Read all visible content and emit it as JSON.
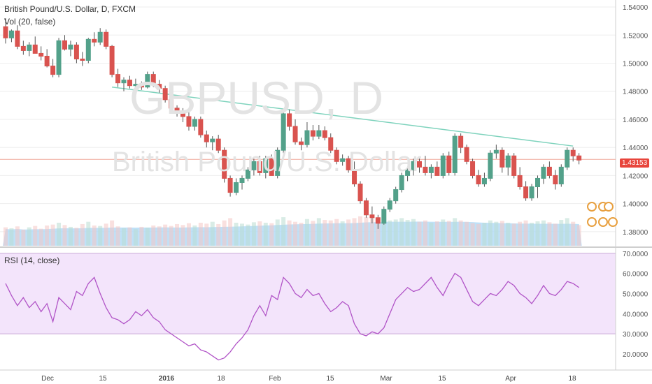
{
  "header": {
    "symbol_title": "British Pound/U.S. Dollar, D, FXCM",
    "volume_label": "Vol (20, false)",
    "rsi_label": "RSI (14, close)"
  },
  "watermark": {
    "line1": "GBPUSD, D",
    "line2": "British Pound/U.S. Dollar"
  },
  "last_price": "1.43153",
  "colors": {
    "up": "#53a18a",
    "down": "#d9534f",
    "trendline": "#7fd3bd",
    "price_line": "#f0a89a",
    "volume_ma": "#a9d7f5",
    "rsi_line": "#b154c7",
    "rsi_band": "#f3e4fb",
    "grid": "#eeeeee"
  },
  "chart_data": [
    {
      "type": "candlestick",
      "title": "British Pound/U.S. Dollar, D, FXCM",
      "ylim": [
        1.37,
        1.545
      ],
      "y_ticks": [
        "1.54000",
        "1.52000",
        "1.50000",
        "1.48000",
        "1.46000",
        "1.44000",
        "1.42000",
        "1.40000",
        "1.38000"
      ],
      "x_ticks": [
        "Dec",
        "15",
        "2016",
        "18",
        "Feb",
        "15",
        "Mar",
        "15",
        "Apr",
        "18"
      ],
      "ohlc": [
        [
          1.526,
          1.532,
          1.514,
          1.518
        ],
        [
          1.518,
          1.524,
          1.515,
          1.523
        ],
        [
          1.523,
          1.527,
          1.51,
          1.512
        ],
        [
          1.512,
          1.516,
          1.506,
          1.509
        ],
        [
          1.509,
          1.515,
          1.505,
          1.513
        ],
        [
          1.513,
          1.519,
          1.508,
          1.507
        ],
        [
          1.507,
          1.512,
          1.502,
          1.505
        ],
        [
          1.505,
          1.51,
          1.497,
          1.498
        ],
        [
          1.498,
          1.503,
          1.49,
          1.492
        ],
        [
          1.492,
          1.518,
          1.49,
          1.516
        ],
        [
          1.516,
          1.52,
          1.509,
          1.51
        ],
        [
          1.51,
          1.516,
          1.505,
          1.513
        ],
        [
          1.513,
          1.515,
          1.5,
          1.503
        ],
        [
          1.503,
          1.508,
          1.498,
          1.502
        ],
        [
          1.502,
          1.518,
          1.5,
          1.517
        ],
        [
          1.517,
          1.522,
          1.512,
          1.515
        ],
        [
          1.515,
          1.525,
          1.513,
          1.522
        ],
        [
          1.522,
          1.524,
          1.51,
          1.512
        ],
        [
          1.512,
          1.513,
          1.49,
          1.492
        ],
        [
          1.492,
          1.496,
          1.483,
          1.486
        ],
        [
          1.486,
          1.49,
          1.48,
          1.488
        ],
        [
          1.488,
          1.491,
          1.482,
          1.484
        ],
        [
          1.484,
          1.489,
          1.48,
          1.485
        ],
        [
          1.485,
          1.487,
          1.481,
          1.483
        ],
        [
          1.483,
          1.494,
          1.482,
          1.492
        ],
        [
          1.492,
          1.494,
          1.483,
          1.485
        ],
        [
          1.485,
          1.488,
          1.479,
          1.482
        ],
        [
          1.482,
          1.484,
          1.472,
          1.474
        ],
        [
          1.474,
          1.477,
          1.466,
          1.468
        ],
        [
          1.468,
          1.47,
          1.462,
          1.466
        ],
        [
          1.466,
          1.468,
          1.458,
          1.462
        ],
        [
          1.462,
          1.465,
          1.452,
          1.455
        ],
        [
          1.455,
          1.462,
          1.452,
          1.46
        ],
        [
          1.46,
          1.462,
          1.447,
          1.449
        ],
        [
          1.449,
          1.452,
          1.44,
          1.444
        ],
        [
          1.444,
          1.448,
          1.438,
          1.446
        ],
        [
          1.446,
          1.449,
          1.436,
          1.438
        ],
        [
          1.438,
          1.44,
          1.415,
          1.418
        ],
        [
          1.418,
          1.42,
          1.405,
          1.408
        ],
        [
          1.408,
          1.418,
          1.406,
          1.415
        ],
        [
          1.415,
          1.42,
          1.41,
          1.418
        ],
        [
          1.418,
          1.426,
          1.416,
          1.424
        ],
        [
          1.424,
          1.432,
          1.42,
          1.43
        ],
        [
          1.43,
          1.434,
          1.42,
          1.422
        ],
        [
          1.422,
          1.434,
          1.418,
          1.432
        ],
        [
          1.432,
          1.435,
          1.42,
          1.42
        ],
        [
          1.42,
          1.44,
          1.418,
          1.438
        ],
        [
          1.438,
          1.466,
          1.436,
          1.464
        ],
        [
          1.464,
          1.467,
          1.452,
          1.455
        ],
        [
          1.455,
          1.46,
          1.442,
          1.444
        ],
        [
          1.444,
          1.447,
          1.438,
          1.442
        ],
        [
          1.442,
          1.458,
          1.44,
          1.452
        ],
        [
          1.452,
          1.456,
          1.445,
          1.448
        ],
        [
          1.448,
          1.456,
          1.446,
          1.452
        ],
        [
          1.452,
          1.455,
          1.445,
          1.447
        ],
        [
          1.447,
          1.45,
          1.436,
          1.438
        ],
        [
          1.438,
          1.44,
          1.428,
          1.43
        ],
        [
          1.43,
          1.435,
          1.427,
          1.432
        ],
        [
          1.432,
          1.434,
          1.422,
          1.424
        ],
        [
          1.424,
          1.43,
          1.412,
          1.414
        ],
        [
          1.414,
          1.416,
          1.4,
          1.402
        ],
        [
          1.402,
          1.404,
          1.39,
          1.392
        ],
        [
          1.392,
          1.398,
          1.386,
          1.39
        ],
        [
          1.39,
          1.392,
          1.382,
          1.386
        ],
        [
          1.386,
          1.398,
          1.385,
          1.396
        ],
        [
          1.396,
          1.404,
          1.394,
          1.402
        ],
        [
          1.402,
          1.412,
          1.4,
          1.41
        ],
        [
          1.41,
          1.422,
          1.408,
          1.42
        ],
        [
          1.42,
          1.426,
          1.416,
          1.424
        ],
        [
          1.424,
          1.432,
          1.42,
          1.43
        ],
        [
          1.43,
          1.432,
          1.422,
          1.426
        ],
        [
          1.426,
          1.434,
          1.42,
          1.422
        ],
        [
          1.422,
          1.428,
          1.418,
          1.426
        ],
        [
          1.426,
          1.43,
          1.42,
          1.42
        ],
        [
          1.42,
          1.436,
          1.418,
          1.434
        ],
        [
          1.434,
          1.437,
          1.42,
          1.422
        ],
        [
          1.422,
          1.45,
          1.42,
          1.448
        ],
        [
          1.448,
          1.45,
          1.436,
          1.44
        ],
        [
          1.44,
          1.442,
          1.428,
          1.43
        ],
        [
          1.43,
          1.432,
          1.418,
          1.42
        ],
        [
          1.42,
          1.424,
          1.412,
          1.414
        ],
        [
          1.414,
          1.422,
          1.412,
          1.418
        ],
        [
          1.418,
          1.438,
          1.416,
          1.436
        ],
        [
          1.436,
          1.442,
          1.432,
          1.438
        ],
        [
          1.438,
          1.44,
          1.422,
          1.426
        ],
        [
          1.426,
          1.436,
          1.42,
          1.434
        ],
        [
          1.434,
          1.436,
          1.418,
          1.42
        ],
        [
          1.42,
          1.426,
          1.41,
          1.412
        ],
        [
          1.412,
          1.416,
          1.402,
          1.404
        ],
        [
          1.404,
          1.414,
          1.402,
          1.412
        ],
        [
          1.412,
          1.42,
          1.404,
          1.418
        ],
        [
          1.418,
          1.428,
          1.414,
          1.426
        ],
        [
          1.426,
          1.43,
          1.418,
          1.42
        ],
        [
          1.42,
          1.424,
          1.41,
          1.414
        ],
        [
          1.414,
          1.428,
          1.412,
          1.426
        ],
        [
          1.426,
          1.44,
          1.424,
          1.438
        ],
        [
          1.438,
          1.44,
          1.43,
          1.434
        ],
        [
          1.434,
          1.436,
          1.428,
          1.431
        ]
      ],
      "volume": [
        0.4,
        0.38,
        0.42,
        0.35,
        0.4,
        0.43,
        0.37,
        0.44,
        0.46,
        0.5,
        0.45,
        0.41,
        0.39,
        0.47,
        0.52,
        0.44,
        0.43,
        0.48,
        0.55,
        0.42,
        0.38,
        0.4,
        0.36,
        0.41,
        0.39,
        0.44,
        0.42,
        0.46,
        0.43,
        0.47,
        0.45,
        0.49,
        0.44,
        0.5,
        0.48,
        0.52,
        0.47,
        0.55,
        0.6,
        0.5,
        0.48,
        0.46,
        0.51,
        0.53,
        0.5,
        0.49,
        0.57,
        0.62,
        0.55,
        0.52,
        0.5,
        0.58,
        0.54,
        0.6,
        0.56,
        0.55,
        0.58,
        0.53,
        0.57,
        0.6,
        0.64,
        0.62,
        0.6,
        0.58,
        0.61,
        0.55,
        0.57,
        0.6,
        0.56,
        0.58,
        0.52,
        0.55,
        0.5,
        0.53,
        0.57,
        0.54,
        0.6,
        0.55,
        0.52,
        0.49,
        0.47,
        0.5,
        0.55,
        0.52,
        0.54,
        0.5,
        0.48,
        0.52,
        0.55,
        0.5,
        0.53,
        0.55,
        0.51,
        0.48,
        0.56,
        0.6,
        0.52,
        0.45
      ],
      "trendline": [
        [
          18,
          1.483
        ],
        [
          96,
          1.441
        ]
      ],
      "horizontal_line": 1.4315
    },
    {
      "type": "line",
      "title": "RSI (14, close)",
      "ylim": [
        12,
        72
      ],
      "y_ticks": [
        "70.0000",
        "60.0000",
        "50.0000",
        "40.0000",
        "30.0000",
        "20.0000"
      ],
      "band": [
        30,
        70
      ],
      "values": [
        55,
        49,
        44,
        48,
        43,
        46,
        41,
        45,
        36,
        48,
        45,
        42,
        51,
        49,
        55,
        58,
        50,
        43,
        38,
        37,
        35,
        37,
        41,
        39,
        42,
        38,
        36,
        32,
        30,
        28,
        26,
        24,
        25,
        22,
        21,
        19,
        17,
        18,
        21,
        25,
        28,
        32,
        39,
        44,
        39,
        49,
        47,
        58,
        55,
        50,
        48,
        52,
        49,
        50,
        45,
        41,
        43,
        46,
        44,
        35,
        30,
        29,
        31,
        30,
        33,
        40,
        47,
        50,
        53,
        51,
        52,
        55,
        58,
        53,
        49,
        55,
        60,
        58,
        52,
        46,
        44,
        47,
        50,
        49,
        52,
        56,
        54,
        50,
        48,
        45,
        49,
        54,
        50,
        49,
        52,
        56,
        55,
        53
      ]
    }
  ]
}
